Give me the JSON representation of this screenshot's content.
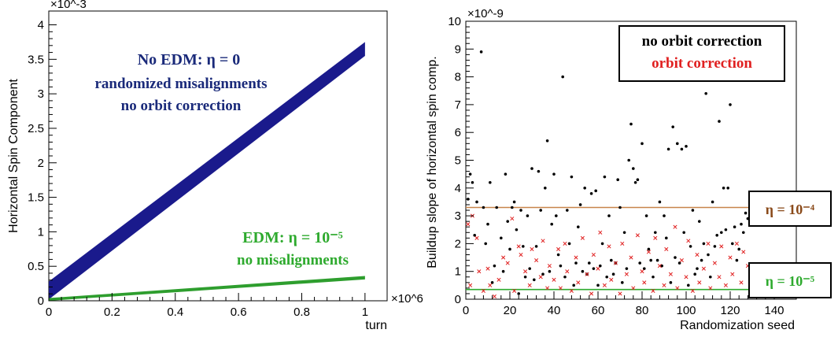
{
  "chart_data": [
    {
      "type": "area",
      "xlabel": "turn",
      "ylabel": "Horizontal Spin Component",
      "x_exponent": "×10^6",
      "y_exponent": "×10^-3",
      "xlim": [
        0,
        1.07
      ],
      "ylim": [
        0,
        4.2
      ],
      "x_ticks": [
        "0",
        "0.2",
        "0.4",
        "0.6",
        "0.8",
        "1"
      ],
      "y_ticks": [
        "0",
        "0.5",
        "1",
        "1.5",
        "2",
        "2.5",
        "3",
        "3.5",
        "4"
      ],
      "series": [
        {
          "color": "#1a1a8c",
          "x": [
            0,
            1
          ],
          "lower": [
            0.02,
            3.55
          ],
          "upper": [
            0.28,
            3.75
          ]
        },
        {
          "color": "#2e9e2e",
          "x": [
            0,
            1
          ],
          "lower": [
            0.0,
            0.31
          ],
          "upper": [
            0.04,
            0.36
          ]
        }
      ],
      "annotations": [
        {
          "lines": [
            "No EDM: η = 0",
            "randomized misalignments",
            "no orbit correction"
          ],
          "color": "#1a2a7a"
        },
        {
          "lines": [
            "EDM: η = 10⁻⁵",
            "no misalignments"
          ],
          "color": "#2eaa2e"
        }
      ]
    },
    {
      "type": "scatter",
      "xlabel": "Randomization seed",
      "ylabel": "Buildup slope of horizontal spin comp.",
      "y_exponent": "×10^-9",
      "xlim": [
        0,
        150
      ],
      "ylim": [
        0,
        10
      ],
      "x_ticks": [
        "0",
        "20",
        "40",
        "60",
        "80",
        "100",
        "120",
        "140"
      ],
      "y_ticks": [
        "0",
        "1",
        "2",
        "3",
        "4",
        "5",
        "6",
        "7",
        "8",
        "9",
        "10"
      ],
      "legend": {
        "entries": [
          "no orbit correction",
          "orbit correction"
        ],
        "colors": [
          "#000000",
          "#e02020"
        ],
        "position": "top-right"
      },
      "hlines": [
        {
          "y": 3.3,
          "color": "#c8844a",
          "label": "η = 10⁻⁴",
          "label_color": "#8a4a1a"
        },
        {
          "y": 0.35,
          "color": "#2eaa2e",
          "label": "η = 10⁻⁵",
          "label_color": "#2eaa2e"
        }
      ],
      "series": [
        {
          "name": "no orbit correction",
          "marker": "dot",
          "color": "#000000",
          "points": [
            [
              1,
              3.6
            ],
            [
              2,
              4.5
            ],
            [
              3,
              4.2
            ],
            [
              4,
              2.3
            ],
            [
              5,
              3.5
            ],
            [
              7,
              8.9
            ],
            [
              8,
              3.3
            ],
            [
              9,
              2.0
            ],
            [
              10,
              2.7
            ],
            [
              11,
              4.2
            ],
            [
              12,
              0.6
            ],
            [
              13,
              1.2
            ],
            [
              14,
              3.3
            ],
            [
              16,
              2.2
            ],
            [
              17,
              1.0
            ],
            [
              18,
              4.5
            ],
            [
              19,
              2.8
            ],
            [
              20,
              1.8
            ],
            [
              21,
              3.3
            ],
            [
              22,
              3.5
            ],
            [
              23,
              2.5
            ],
            [
              24,
              0.2
            ],
            [
              25,
              3.2
            ],
            [
              26,
              1.9
            ],
            [
              27,
              0.8
            ],
            [
              28,
              3.0
            ],
            [
              29,
              1.1
            ],
            [
              30,
              4.7
            ],
            [
              31,
              0.7
            ],
            [
              32,
              1.9
            ],
            [
              33,
              4.6
            ],
            [
              34,
              3.2
            ],
            [
              35,
              0.9
            ],
            [
              36,
              4.0
            ],
            [
              37,
              5.7
            ],
            [
              38,
              1.0
            ],
            [
              39,
              2.7
            ],
            [
              40,
              4.5
            ],
            [
              41,
              3.0
            ],
            [
              42,
              1.6
            ],
            [
              43,
              1.2
            ],
            [
              44,
              8.0
            ],
            [
              45,
              0.8
            ],
            [
              46,
              3.2
            ],
            [
              47,
              2.0
            ],
            [
              48,
              4.4
            ],
            [
              49,
              0.5
            ],
            [
              50,
              1.3
            ],
            [
              51,
              2.6
            ],
            [
              52,
              3.4
            ],
            [
              53,
              1.0
            ],
            [
              54,
              4.0
            ],
            [
              55,
              0.9
            ],
            [
              56,
              1.3
            ],
            [
              57,
              3.8
            ],
            [
              58,
              1.1
            ],
            [
              59,
              3.9
            ],
            [
              60,
              0.5
            ],
            [
              61,
              1.2
            ],
            [
              62,
              2.0
            ],
            [
              63,
              4.4
            ],
            [
              64,
              0.8
            ],
            [
              65,
              3.0
            ],
            [
              66,
              1.4
            ],
            [
              67,
              0.9
            ],
            [
              68,
              1.3
            ],
            [
              69,
              4.3
            ],
            [
              70,
              3.3
            ],
            [
              71,
              0.6
            ],
            [
              72,
              2.4
            ],
            [
              73,
              1.1
            ],
            [
              74,
              5.0
            ],
            [
              75,
              6.3
            ],
            [
              76,
              4.7
            ],
            [
              77,
              4.2
            ],
            [
              78,
              4.3
            ],
            [
              79,
              1.3
            ],
            [
              80,
              5.6
            ],
            [
              81,
              1.1
            ],
            [
              82,
              3.0
            ],
            [
              83,
              1.8
            ],
            [
              84,
              1.4
            ],
            [
              85,
              0.8
            ],
            [
              86,
              2.4
            ],
            [
              87,
              1.4
            ],
            [
              88,
              3.5
            ],
            [
              89,
              1.2
            ],
            [
              90,
              3.0
            ],
            [
              91,
              2.2
            ],
            [
              92,
              5.4
            ],
            [
              93,
              0.6
            ],
            [
              94,
              6.2
            ],
            [
              95,
              1.5
            ],
            [
              96,
              5.6
            ],
            [
              97,
              1.3
            ],
            [
              98,
              5.4
            ],
            [
              99,
              2.4
            ],
            [
              100,
              5.5
            ],
            [
              101,
              0.5
            ],
            [
              102,
              1.9
            ],
            [
              103,
              3.2
            ],
            [
              104,
              0.9
            ],
            [
              105,
              1.1
            ],
            [
              106,
              2.8
            ],
            [
              107,
              1.4
            ],
            [
              108,
              2.0
            ],
            [
              109,
              7.4
            ],
            [
              110,
              1.6
            ],
            [
              111,
              0.8
            ],
            [
              112,
              3.5
            ],
            [
              113,
              1.9
            ],
            [
              114,
              2.3
            ],
            [
              115,
              6.4
            ],
            [
              116,
              2.4
            ],
            [
              117,
              4.0
            ],
            [
              118,
              2.5
            ],
            [
              119,
              4.0
            ],
            [
              120,
              7.0
            ],
            [
              121,
              2.0
            ],
            [
              122,
              2.6
            ],
            [
              123,
              1.4
            ],
            [
              124,
              1.8
            ],
            [
              125,
              2.7
            ],
            [
              126,
              2.4
            ],
            [
              127,
              3.1
            ],
            [
              128,
              2.9
            ]
          ]
        },
        {
          "name": "orbit correction",
          "marker": "cross",
          "color": "#e02020",
          "points": [
            [
              1,
              2.7
            ],
            [
              2,
              0.5
            ],
            [
              3,
              3.0
            ],
            [
              5,
              2.2
            ],
            [
              6,
              1.0
            ],
            [
              8,
              0.3
            ],
            [
              10,
              1.1
            ],
            [
              11,
              0.5
            ],
            [
              13,
              0.1
            ],
            [
              15,
              0.7
            ],
            [
              17,
              1.5
            ],
            [
              19,
              1.3
            ],
            [
              21,
              2.9
            ],
            [
              22,
              0.3
            ],
            [
              24,
              1.9
            ],
            [
              25,
              1.6
            ],
            [
              27,
              1.0
            ],
            [
              29,
              0.5
            ],
            [
              30,
              1.8
            ],
            [
              32,
              1.4
            ],
            [
              34,
              0.8
            ],
            [
              35,
              2.1
            ],
            [
              37,
              0.4
            ],
            [
              38,
              1.2
            ],
            [
              40,
              0.7
            ],
            [
              42,
              1.8
            ],
            [
              43,
              0.4
            ],
            [
              45,
              2.0
            ],
            [
              46,
              1.0
            ],
            [
              48,
              0.3
            ],
            [
              50,
              1.5
            ],
            [
              51,
              0.6
            ],
            [
              53,
              2.2
            ],
            [
              55,
              0.9
            ],
            [
              57,
              0.2
            ],
            [
              58,
              1.6
            ],
            [
              60,
              1.1
            ],
            [
              61,
              2.4
            ],
            [
              63,
              0.5
            ],
            [
              65,
              1.9
            ],
            [
              66,
              0.7
            ],
            [
              68,
              1.3
            ],
            [
              70,
              0.2
            ],
            [
              71,
              2.0
            ],
            [
              73,
              0.9
            ],
            [
              75,
              1.5
            ],
            [
              76,
              0.4
            ],
            [
              78,
              2.3
            ],
            [
              80,
              1.0
            ],
            [
              81,
              0.6
            ],
            [
              83,
              1.7
            ],
            [
              85,
              0.3
            ],
            [
              86,
              2.2
            ],
            [
              88,
              1.2
            ],
            [
              90,
              0.5
            ],
            [
              91,
              1.8
            ],
            [
              93,
              0.9
            ],
            [
              95,
              2.6
            ],
            [
              96,
              0.4
            ],
            [
              98,
              1.4
            ],
            [
              100,
              0.8
            ],
            [
              101,
              2.1
            ],
            [
              103,
              0.3
            ],
            [
              105,
              1.6
            ],
            [
              106,
              0.6
            ],
            [
              108,
              1.1
            ],
            [
              110,
              2.0
            ],
            [
              111,
              0.4
            ],
            [
              113,
              1.3
            ],
            [
              115,
              0.8
            ],
            [
              116,
              1.9
            ],
            [
              118,
              0.5
            ],
            [
              120,
              1.5
            ],
            [
              121,
              0.9
            ],
            [
              123,
              2.0
            ],
            [
              125,
              0.6
            ],
            [
              126,
              1.7
            ],
            [
              128,
              1.2
            ]
          ]
        }
      ]
    }
  ]
}
